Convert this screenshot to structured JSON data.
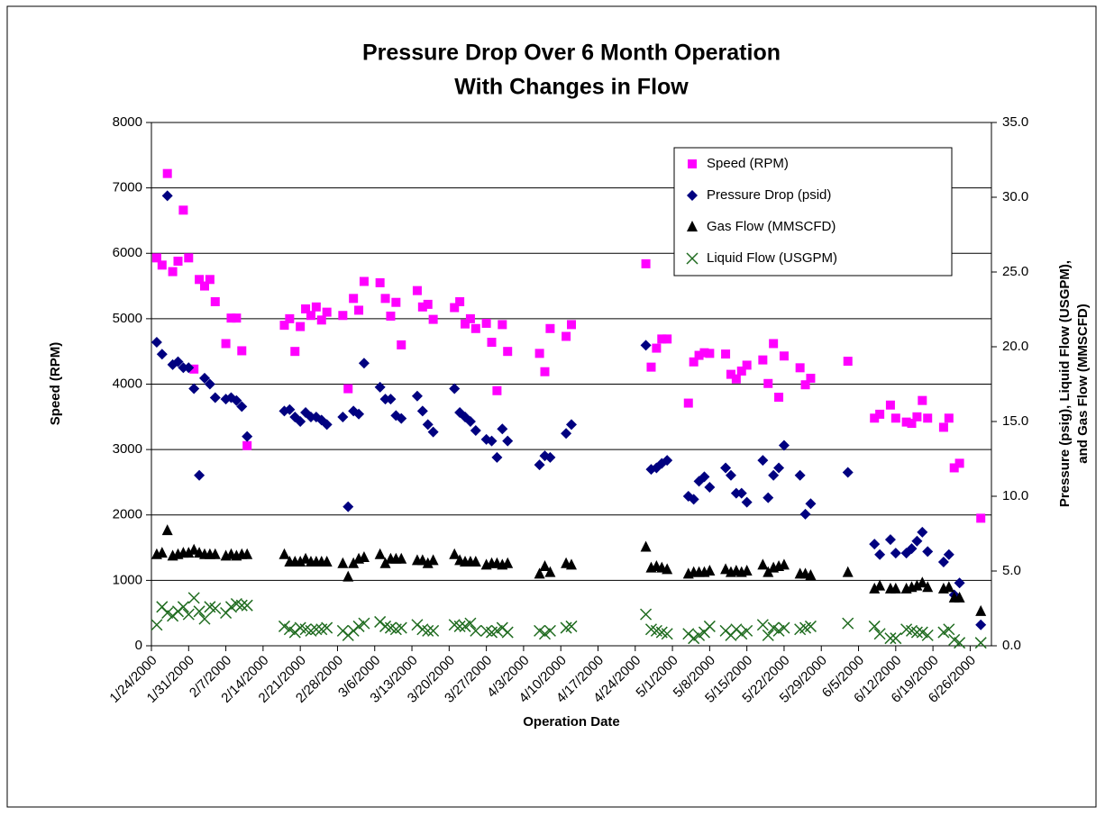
{
  "chart_data": {
    "type": "scatter",
    "title": [
      "Pressure Drop Over 6 Month Operation",
      "With Changes in Flow"
    ],
    "xlabel": "Operation Date",
    "ylabel": "Speed (RPM)",
    "y2label": [
      "Pressure (psig), Liquid Flow (USGPM),",
      "and Gas Flow (MMSCFD)"
    ],
    "xlim": [
      "1/24/2000",
      "6/30/2000"
    ],
    "xticks": [
      "1/24/2000",
      "1/31/2000",
      "2/7/2000",
      "2/14/2000",
      "2/21/2000",
      "2/28/2000",
      "3/6/2000",
      "3/13/2000",
      "3/20/2000",
      "3/27/2000",
      "4/3/2000",
      "4/10/2000",
      "4/17/2000",
      "4/24/2000",
      "5/1/2000",
      "5/8/2000",
      "5/15/2000",
      "5/22/2000",
      "5/29/2000",
      "6/5/2000",
      "6/12/2000",
      "6/19/2000",
      "6/26/2000"
    ],
    "ylim": [
      0,
      8000
    ],
    "yticks": [
      0,
      1000,
      2000,
      3000,
      4000,
      5000,
      6000,
      7000,
      8000
    ],
    "y2lim": [
      0,
      35
    ],
    "y2ticks": [
      {
        "value": 0,
        "label": "0.0"
      },
      {
        "value": 5,
        "label": "5.0"
      },
      {
        "value": 10,
        "label": "10.0"
      },
      {
        "value": 15,
        "label": "15.0"
      },
      {
        "value": 20,
        "label": "20.0"
      },
      {
        "value": 25,
        "label": "25.0"
      },
      {
        "value": 30,
        "label": "30.0"
      },
      {
        "value": 35,
        "label": "35.0"
      }
    ],
    "grid": true,
    "legend": "upper right",
    "x": [
      "1/25/2000",
      "1/26/2000",
      "1/27/2000",
      "1/28/2000",
      "1/29/2000",
      "1/30/2000",
      "1/31/2000",
      "2/1/2000",
      "2/2/2000",
      "2/3/2000",
      "2/4/2000",
      "2/5/2000",
      "2/7/2000",
      "2/8/2000",
      "2/9/2000",
      "2/10/2000",
      "2/11/2000",
      "2/18/2000",
      "2/19/2000",
      "2/20/2000",
      "2/21/2000",
      "2/22/2000",
      "2/23/2000",
      "2/24/2000",
      "2/25/2000",
      "2/26/2000",
      "2/29/2000",
      "3/1/2000",
      "3/2/2000",
      "3/3/2000",
      "3/4/2000",
      "3/7/2000",
      "3/8/2000",
      "3/9/2000",
      "3/10/2000",
      "3/11/2000",
      "3/14/2000",
      "3/15/2000",
      "3/16/2000",
      "3/17/2000",
      "3/21/2000",
      "3/22/2000",
      "3/23/2000",
      "3/24/2000",
      "3/25/2000",
      "3/27/2000",
      "3/28/2000",
      "3/29/2000",
      "3/30/2000",
      "3/31/2000",
      "4/6/2000",
      "4/7/2000",
      "4/8/2000",
      "4/11/2000",
      "4/12/2000",
      "4/26/2000",
      "4/27/2000",
      "4/28/2000",
      "4/29/2000",
      "4/30/2000",
      "5/4/2000",
      "5/5/2000",
      "5/6/2000",
      "5/7/2000",
      "5/8/2000",
      "5/11/2000",
      "5/12/2000",
      "5/13/2000",
      "5/14/2000",
      "5/15/2000",
      "5/18/2000",
      "5/19/2000",
      "5/20/2000",
      "5/21/2000",
      "5/22/2000",
      "5/25/2000",
      "5/26/2000",
      "5/27/2000",
      "6/3/2000",
      "6/8/2000",
      "6/9/2000",
      "6/11/2000",
      "6/12/2000",
      "6/14/2000",
      "6/15/2000",
      "6/16/2000",
      "6/17/2000",
      "6/18/2000",
      "6/21/2000",
      "6/22/2000",
      "6/23/2000",
      "6/24/2000",
      "6/28/2000"
    ],
    "series": [
      {
        "name": "Speed (RPM)",
        "color": "#ff00ff",
        "marker": "square",
        "values": [
          5930,
          5820,
          7220,
          5720,
          5880,
          6660,
          5930,
          4230,
          5600,
          5500,
          5600,
          5260,
          4620,
          5010,
          5010,
          4510,
          3060,
          4900,
          5000,
          4500,
          4880,
          5150,
          5050,
          5180,
          4980,
          5100,
          5050,
          3930,
          5310,
          5130,
          5570,
          5550,
          5310,
          5040,
          5250,
          4600,
          5430,
          5180,
          5220,
          4990,
          5170,
          5260,
          4920,
          5000,
          4850,
          4930,
          4640,
          3900,
          4910,
          4500,
          4470,
          4190,
          4850,
          4730,
          4910,
          5840,
          4260,
          4550,
          4690,
          4690,
          3710,
          4340,
          4440,
          4480,
          4470,
          4460,
          4150,
          4080,
          4200,
          4290,
          4370,
          4010,
          4620,
          3800,
          4430,
          4250,
          3990,
          4090,
          4350,
          3480,
          3540,
          3680,
          3480,
          3420,
          3400,
          3500,
          3750,
          3480,
          3340,
          3480,
          2720,
          2790,
          1950
        ]
      },
      {
        "name": "Pressure Drop (psid)",
        "color": "#000080",
        "marker": "diamond",
        "axis": "y2",
        "values": [
          20.3,
          19.5,
          30.1,
          18.8,
          19.0,
          18.6,
          18.6,
          17.2,
          11.4,
          17.9,
          17.5,
          16.6,
          16.5,
          16.6,
          16.4,
          16.0,
          14.0,
          15.7,
          15.8,
          15.3,
          15.0,
          15.6,
          15.3,
          15.3,
          15.1,
          14.8,
          15.3,
          9.3,
          15.7,
          15.5,
          18.9,
          17.3,
          16.5,
          16.5,
          15.4,
          15.2,
          16.7,
          15.7,
          14.8,
          14.3,
          17.2,
          15.6,
          15.3,
          15.0,
          14.4,
          13.8,
          13.7,
          12.6,
          14.5,
          13.7,
          12.1,
          12.7,
          12.6,
          14.2,
          14.8,
          20.1,
          11.8,
          11.9,
          12.2,
          12.4,
          10.0,
          9.8,
          11.0,
          11.3,
          10.6,
          11.9,
          11.4,
          10.2,
          10.2,
          9.6,
          12.4,
          9.9,
          11.4,
          11.9,
          13.4,
          11.4,
          8.8,
          9.5,
          11.6,
          6.8,
          6.1,
          7.1,
          6.2,
          6.2,
          6.5,
          7.0,
          7.6,
          6.3,
          5.6,
          6.1,
          3.4,
          4.2,
          1.4
        ]
      },
      {
        "name": "Gas Flow  (MMSCFD)",
        "color": "#000000",
        "marker": "triangle",
        "axis": "y2",
        "values": [
          6.1,
          6.2,
          7.7,
          6.0,
          6.1,
          6.2,
          6.2,
          6.4,
          6.2,
          6.1,
          6.1,
          6.1,
          6.0,
          6.1,
          6.0,
          6.1,
          6.1,
          6.1,
          5.6,
          5.6,
          5.6,
          5.8,
          5.6,
          5.6,
          5.6,
          5.6,
          5.5,
          4.6,
          5.5,
          5.8,
          5.9,
          6.1,
          5.5,
          5.8,
          5.8,
          5.8,
          5.7,
          5.7,
          5.5,
          5.7,
          6.1,
          5.7,
          5.6,
          5.6,
          5.6,
          5.4,
          5.5,
          5.5,
          5.4,
          5.5,
          4.8,
          5.3,
          4.9,
          5.5,
          5.4,
          6.6,
          5.2,
          5.3,
          5.2,
          5.1,
          4.8,
          4.9,
          4.9,
          4.9,
          5.0,
          5.1,
          4.9,
          5.0,
          4.9,
          5.0,
          5.4,
          4.9,
          5.2,
          5.3,
          5.4,
          4.8,
          4.8,
          4.7,
          4.9,
          3.8,
          4.0,
          3.8,
          3.8,
          3.8,
          3.9,
          4.0,
          4.2,
          3.9,
          3.8,
          3.9,
          3.2,
          3.2,
          2.3
        ]
      },
      {
        "name": "Liquid Flow  (USGPM)",
        "color": "#1f6b1f",
        "marker": "x",
        "axis": "y2",
        "values": [
          1.4,
          2.6,
          2.2,
          2.0,
          2.3,
          2.6,
          2.1,
          3.2,
          2.3,
          1.8,
          2.6,
          2.5,
          2.2,
          2.6,
          2.8,
          2.7,
          2.7,
          1.3,
          1.1,
          0.9,
          1.2,
          1.1,
          1.0,
          1.1,
          1.1,
          1.2,
          1.0,
          0.7,
          1.0,
          1.3,
          1.5,
          1.6,
          1.3,
          1.2,
          1.1,
          1.2,
          1.4,
          1.1,
          1.0,
          1.0,
          1.4,
          1.3,
          1.3,
          1.5,
          1.0,
          1.0,
          0.9,
          1.0,
          1.2,
          0.9,
          1.0,
          0.8,
          1.0,
          1.2,
          1.3,
          2.1,
          1.1,
          1.0,
          0.9,
          0.8,
          0.8,
          0.5,
          0.7,
          0.9,
          1.3,
          1.0,
          0.7,
          1.1,
          0.8,
          1.0,
          1.4,
          0.7,
          1.2,
          1.0,
          1.2,
          1.1,
          1.2,
          1.3,
          1.5,
          1.3,
          0.8,
          0.5,
          0.5,
          1.1,
          1.0,
          0.9,
          0.9,
          0.7,
          0.9,
          1.1,
          0.4,
          0.2,
          0.2
        ]
      }
    ]
  }
}
